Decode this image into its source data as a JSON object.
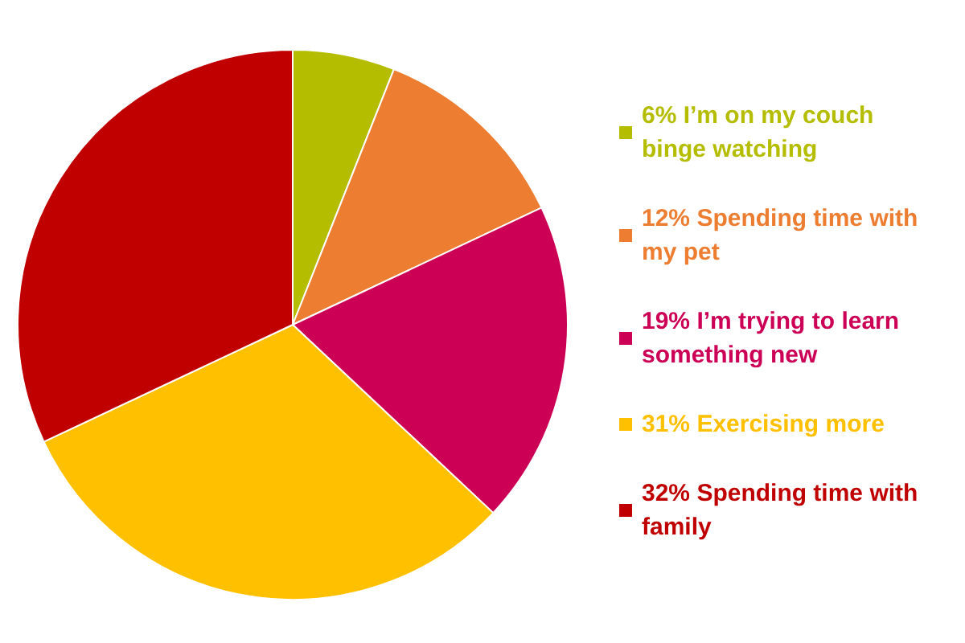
{
  "chart_data": {
    "type": "pie",
    "categories": [
      "I’m on my couch binge watching",
      "Spending time with my pet",
      "I’m trying to learn something new",
      "Exercising more",
      "Spending time with family"
    ],
    "values": [
      6,
      12,
      19,
      31,
      32
    ],
    "value_labels": [
      "6%",
      "12%",
      "19%",
      "31%",
      "32%"
    ],
    "colors": [
      "#b5bd00",
      "#ed7d31",
      "#cc0055",
      "#ffc000",
      "#c00000"
    ],
    "legend": "right"
  }
}
